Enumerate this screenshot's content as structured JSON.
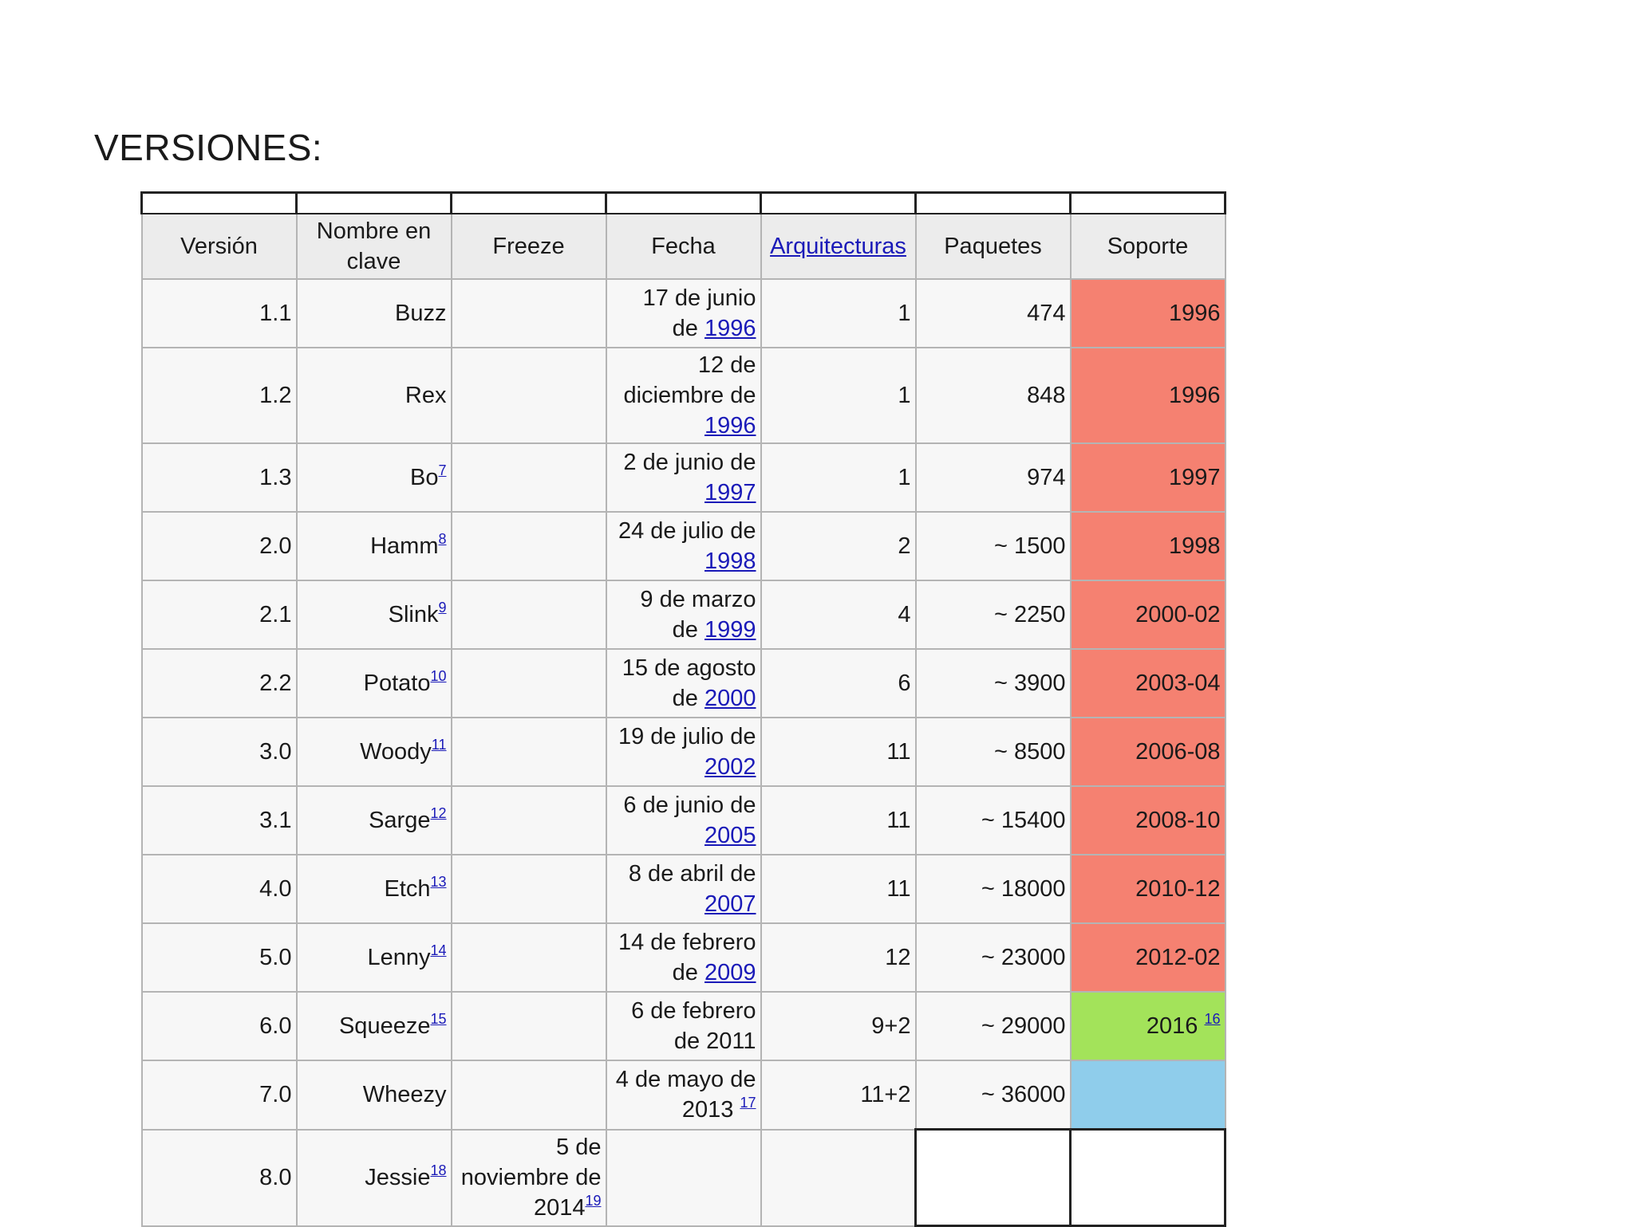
{
  "heading": "VERSIONES:",
  "headers": {
    "version": "Versión",
    "codename": "Nombre en clave",
    "freeze": "Freeze",
    "date": "Fecha",
    "arch": "Arquitecturas",
    "packages": "Paquetes",
    "support": "Soporte"
  },
  "rows": [
    {
      "version": "1.1",
      "name": "Buzz",
      "ref": "",
      "date_text": "17 de junio de ",
      "date_year": "1996",
      "date_ref": "",
      "arch": "1",
      "packages": "474",
      "support": "1996",
      "support_ref": ""
    },
    {
      "version": "1.2",
      "name": "Rex",
      "ref": "",
      "date_text": "12 de diciembre de ",
      "date_year": "1996",
      "date_ref": "",
      "arch": "1",
      "packages": "848",
      "support": "1996",
      "support_ref": ""
    },
    {
      "version": "1.3",
      "name": "Bo",
      "ref": "7",
      "date_text": "2 de junio de ",
      "date_year": "1997",
      "date_ref": "",
      "arch": "1",
      "packages": "974",
      "support": "1997",
      "support_ref": ""
    },
    {
      "version": "2.0",
      "name": "Hamm",
      "ref": "8",
      "date_text": "24 de julio de ",
      "date_year": "1998",
      "date_ref": "",
      "arch": "2",
      "packages": "~ 1500",
      "support": "1998",
      "support_ref": ""
    },
    {
      "version": "2.1",
      "name": "Slink",
      "ref": "9",
      "date_text": "9 de marzo de ",
      "date_year": "1999",
      "date_ref": "",
      "arch": "4",
      "packages": "~ 2250",
      "support": "2000-02",
      "support_ref": ""
    },
    {
      "version": "2.2",
      "name": "Potato",
      "ref": "10",
      "date_text": "15 de agosto de ",
      "date_year": "2000",
      "date_ref": "",
      "arch": "6",
      "packages": "~ 3900",
      "support": "2003-04",
      "support_ref": ""
    },
    {
      "version": "3.0",
      "name": "Woody",
      "ref": "11",
      "date_text": "19 de julio de ",
      "date_year": "2002",
      "date_ref": "",
      "arch": "11",
      "packages": "~ 8500",
      "support": "2006-08",
      "support_ref": ""
    },
    {
      "version": "3.1",
      "name": "Sarge",
      "ref": "12",
      "date_text": "6 de junio de ",
      "date_year": "2005",
      "date_ref": "",
      "arch": "11",
      "packages": "~ 15400",
      "support": "2008-10",
      "support_ref": ""
    },
    {
      "version": "4.0",
      "name": "Etch",
      "ref": "13",
      "date_text": "8 de abril de ",
      "date_year": "2007",
      "date_ref": "",
      "arch": "11",
      "packages": "~ 18000",
      "support": "2010-12",
      "support_ref": ""
    },
    {
      "version": "5.0",
      "name": "Lenny",
      "ref": "14",
      "date_text": "14 de febrero de ",
      "date_year": "2009",
      "date_ref": "",
      "arch": "12",
      "packages": "~ 23000",
      "support": "2012-02",
      "support_ref": ""
    },
    {
      "version": "6.0",
      "name": "Squeeze",
      "ref": "15",
      "date_text": "6 de febrero de 2011",
      "date_year": "",
      "date_ref": "",
      "arch": "9+2",
      "packages": "~ 29000",
      "support": "2016 ",
      "support_ref": "16"
    },
    {
      "version": "7.0",
      "name": "Wheezy",
      "ref": "",
      "date_text": "4 de mayo de 2013 ",
      "date_year": "",
      "date_ref": "17",
      "arch": "11+2",
      "packages": "~ 36000",
      "support": "",
      "support_ref": ""
    },
    {
      "version": "8.0",
      "name": "Jessie",
      "ref": "18",
      "freeze": "5 de noviembre de 2014",
      "freeze_ref": "19"
    }
  ],
  "colors": {
    "support_ended": "#f58171",
    "support_current": "#a3e35a",
    "support_future": "#8fcdeb",
    "link": "#1a1ab8"
  }
}
